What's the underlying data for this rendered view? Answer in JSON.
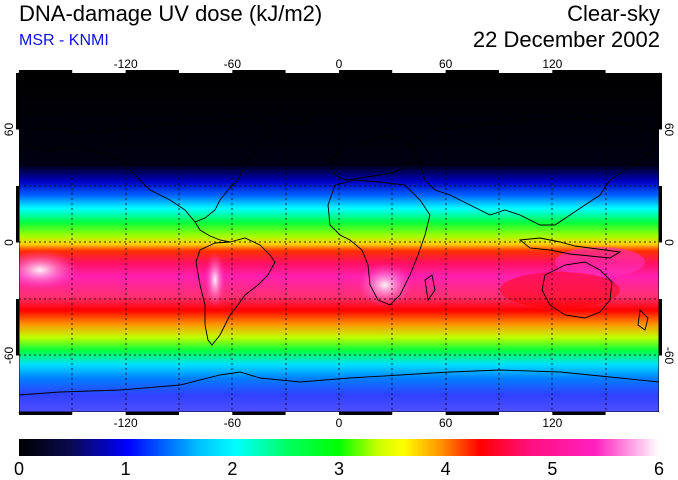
{
  "header": {
    "title": "DNA-damage UV dose (kJ/m2)",
    "source": "MSR - KNMI",
    "condition": "Clear-sky",
    "date": "22 December 2002"
  },
  "colors": {
    "source_text": "#1010e0",
    "scale": [
      "#000000",
      "#0a0a50",
      "#0000ff",
      "#00bfff",
      "#00ffff",
      "#00ff60",
      "#00ff00",
      "#c8ff00",
      "#ffff00",
      "#ff9000",
      "#ff0000",
      "#ff1080",
      "#ff20c0",
      "#ffffff"
    ]
  },
  "map": {
    "lon_ticks_top": [
      "-120",
      "-60",
      "0",
      "60",
      "120"
    ],
    "lon_ticks_bottom": [
      "-120",
      "-60",
      "0",
      "60",
      "120"
    ],
    "lat_ticks_left": [
      "60",
      "0",
      "-60"
    ],
    "lat_ticks_right": [
      "60",
      "0",
      "-60"
    ],
    "lon_values": [
      -120,
      -60,
      0,
      60,
      120
    ],
    "lat_values": [
      60,
      0,
      -60
    ]
  },
  "colorbar": {
    "min": 0,
    "max": 6,
    "tick_labels": [
      "0",
      "1",
      "2",
      "3",
      "4",
      "5",
      "6"
    ]
  }
}
